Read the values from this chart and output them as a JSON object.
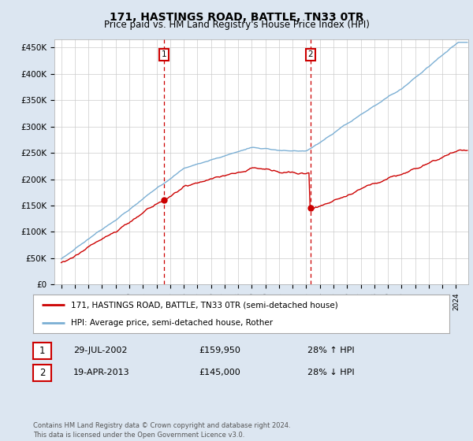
{
  "title": "171, HASTINGS ROAD, BATTLE, TN33 0TR",
  "subtitle": "Price paid vs. HM Land Registry's House Price Index (HPI)",
  "legend_line1": "171, HASTINGS ROAD, BATTLE, TN33 0TR (semi-detached house)",
  "legend_line2": "HPI: Average price, semi-detached house, Rother",
  "footer": "Contains HM Land Registry data © Crown copyright and database right 2024.\nThis data is licensed under the Open Government Licence v3.0.",
  "sale1_date": "29-JUL-2002",
  "sale1_price": "£159,950",
  "sale1_hpi": "28% ↑ HPI",
  "sale2_date": "19-APR-2013",
  "sale2_price": "£145,000",
  "sale2_hpi": "28% ↓ HPI",
  "sale1_year": 2002.57,
  "sale2_year": 2013.3,
  "sale1_value": 159950,
  "sale2_value": 145000,
  "red_color": "#cc0000",
  "blue_color": "#7bafd4",
  "background_color": "#dce6f1",
  "plot_bg_color": "#ffffff",
  "grid_color": "#cccccc",
  "marker_box_color": "#cc0000"
}
